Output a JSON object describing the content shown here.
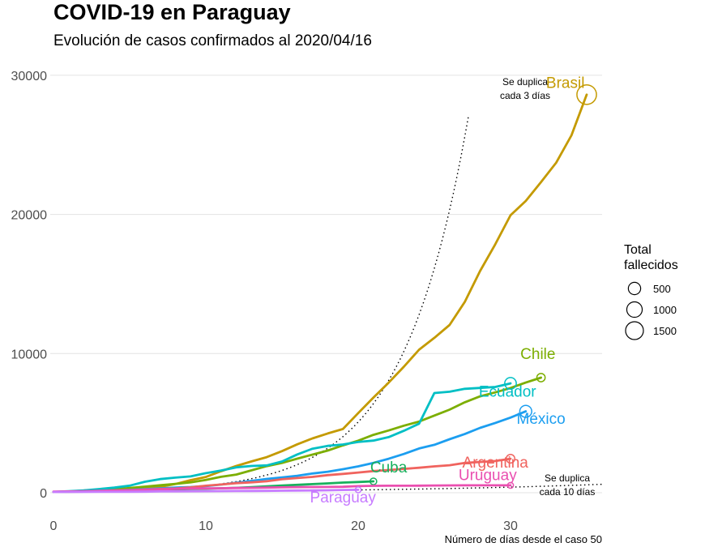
{
  "chart_data": {
    "type": "line",
    "title": "COVID-19 en Paraguay",
    "subtitle": "Evolución de casos confirmados al 2020/04/16",
    "xlabel": "Número de días desde el caso 50",
    "ylabel": "",
    "xlim": [
      0,
      36
    ],
    "ylim": [
      0,
      30000
    ],
    "x_ticks": [
      0,
      10,
      20,
      30
    ],
    "y_ticks": [
      0,
      10000,
      20000,
      30000
    ],
    "grid": true,
    "legend": {
      "title": "Total fallecidos",
      "placement": "right",
      "items": [
        {
          "label": "500",
          "value": 500
        },
        {
          "label": "1000",
          "value": 1000
        },
        {
          "label": "1500",
          "value": 1500
        }
      ]
    },
    "reference_lines": [
      {
        "label": "Se duplica cada 3 días",
        "doubling_days": 3
      },
      {
        "label": "Se duplica cada 10 días",
        "doubling_days": 10
      }
    ],
    "series": [
      {
        "name": "Brasil",
        "color": "#c49a00",
        "deaths": 1924,
        "x": [
          0,
          1,
          2,
          3,
          4,
          5,
          6,
          7,
          8,
          9,
          10,
          11,
          12,
          13,
          14,
          15,
          16,
          17,
          18,
          19,
          20,
          21,
          22,
          23,
          24,
          25,
          26,
          27,
          28,
          29,
          30,
          31,
          32,
          33,
          34,
          35
        ],
        "y": [
          52,
          77,
          98,
          121,
          200,
          234,
          291,
          428,
          621,
          904,
          1128,
          1546,
          1924,
          2247,
          2554,
          2985,
          3477,
          3904,
          4256,
          4579,
          5717,
          6836,
          7910,
          9056,
          10278,
          11130,
          12056,
          13717,
          15927,
          17857,
          19943,
          20964,
          22318,
          23723,
          25684,
          28610
        ]
      },
      {
        "name": "Chile",
        "color": "#7cae00",
        "deaths": 105,
        "x": [
          0,
          1,
          2,
          3,
          4,
          5,
          6,
          7,
          8,
          9,
          10,
          11,
          12,
          13,
          14,
          15,
          16,
          17,
          18,
          19,
          20,
          21,
          22,
          23,
          24,
          25,
          26,
          27,
          28,
          29,
          30,
          31,
          32
        ],
        "y": [
          61,
          75,
          156,
          201,
          238,
          342,
          434,
          537,
          632,
          746,
          922,
          1142,
          1306,
          1610,
          1909,
          2139,
          2449,
          2738,
          3031,
          3404,
          3737,
          4161,
          4471,
          4815,
          5116,
          5546,
          5972,
          6501,
          6927,
          7213,
          7525,
          7917,
          8273
        ]
      },
      {
        "name": "Ecuador",
        "color": "#00bfc4",
        "deaths": 403,
        "x": [
          0,
          1,
          2,
          3,
          4,
          5,
          6,
          7,
          8,
          9,
          10,
          11,
          12,
          13,
          14,
          15,
          16,
          17,
          18,
          19,
          20,
          21,
          22,
          23,
          24,
          25,
          26,
          27,
          28,
          29,
          30
        ],
        "y": [
          58,
          111,
          168,
          260,
          367,
          506,
          789,
          981,
          1082,
          1173,
          1403,
          1595,
          1823,
          1924,
          1962,
          2240,
          2748,
          3163,
          3368,
          3465,
          3646,
          3747,
          3995,
          4450,
          4965,
          7161,
          7257,
          7466,
          7529,
          7603,
          7858
        ]
      },
      {
        "name": "México",
        "color": "#1c9ef0",
        "deaths": 449,
        "x": [
          0,
          1,
          2,
          3,
          4,
          5,
          6,
          7,
          8,
          9,
          10,
          11,
          12,
          13,
          14,
          15,
          16,
          17,
          18,
          19,
          20,
          21,
          22,
          23,
          24,
          25,
          26,
          27,
          28,
          29,
          30,
          31
        ],
        "y": [
          53,
          82,
          93,
          118,
          164,
          203,
          251,
          316,
          367,
          405,
          475,
          585,
          717,
          848,
          993,
          1094,
          1215,
          1378,
          1510,
          1688,
          1890,
          2143,
          2439,
          2785,
          3181,
          3441,
          3844,
          4219,
          4661,
          5014,
          5399,
          5847
        ]
      },
      {
        "name": "Argentina",
        "color": "#f0635e",
        "deaths": 123,
        "x": [
          0,
          1,
          2,
          3,
          4,
          5,
          6,
          7,
          8,
          9,
          10,
          11,
          12,
          13,
          14,
          15,
          16,
          17,
          18,
          19,
          20,
          21,
          22,
          23,
          24,
          25,
          26,
          27,
          28,
          29,
          30
        ],
        "y": [
          56,
          65,
          79,
          97,
          128,
          158,
          225,
          266,
          301,
          387,
          502,
          589,
          690,
          745,
          820,
          966,
          1054,
          1133,
          1265,
          1353,
          1451,
          1554,
          1628,
          1715,
          1795,
          1894,
          1975,
          2142,
          2208,
          2277,
          2443
        ]
      },
      {
        "name": "Cuba",
        "color": "#17b05d",
        "deaths": 27,
        "x": [
          0,
          1,
          2,
          3,
          4,
          5,
          6,
          7,
          8,
          9,
          10,
          11,
          12,
          13,
          14,
          15,
          16,
          17,
          18,
          19,
          20,
          21
        ],
        "y": [
          57,
          67,
          80,
          119,
          139,
          170,
          186,
          212,
          233,
          269,
          288,
          320,
          350,
          396,
          457,
          515,
          564,
          620,
          669,
          726,
          766,
          814
        ]
      },
      {
        "name": "Uruguay",
        "color": "#ea4fb0",
        "deaths": 9,
        "x": [
          0,
          1,
          2,
          3,
          4,
          5,
          6,
          7,
          8,
          9,
          10,
          11,
          12,
          13,
          14,
          15,
          16,
          17,
          18,
          19,
          20,
          21,
          22,
          23,
          24,
          25,
          26,
          27,
          28,
          29,
          30
        ],
        "y": [
          79,
          94,
          110,
          135,
          162,
          189,
          217,
          238,
          274,
          304,
          310,
          320,
          338,
          350,
          369,
          386,
          400,
          406,
          415,
          424,
          473,
          494,
          501,
          502,
          508,
          517,
          527,
          528,
          528,
          528,
          528
        ]
      },
      {
        "name": "Paraguay",
        "color": "#c77cff",
        "deaths": 8,
        "x": [
          0,
          1,
          2,
          3,
          4,
          5,
          6,
          7,
          8,
          9,
          10,
          11,
          12,
          13,
          14,
          15,
          16,
          17,
          18,
          19,
          20
        ],
        "y": [
          52,
          56,
          59,
          64,
          65,
          69,
          77,
          92,
          96,
          104,
          113,
          119,
          124,
          129,
          133,
          147,
          159,
          161,
          174,
          199,
          208
        ]
      }
    ],
    "series_labels": [
      {
        "name": "Brasil",
        "x": 33.6,
        "y": 29100
      },
      {
        "name": "Chile",
        "x": 31.8,
        "y": 9600
      },
      {
        "name": "Ecuador",
        "x": 29.8,
        "y": 6900
      },
      {
        "name": "México",
        "x": 32.0,
        "y": 4950
      },
      {
        "name": "Argentina",
        "x": 29.0,
        "y": 1800
      },
      {
        "name": "Cuba",
        "x": 22.0,
        "y": 1450
      },
      {
        "name": "Uruguay",
        "x": 28.5,
        "y": 900
      },
      {
        "name": "Paraguay",
        "x": 19.0,
        "y": -700
      }
    ]
  }
}
